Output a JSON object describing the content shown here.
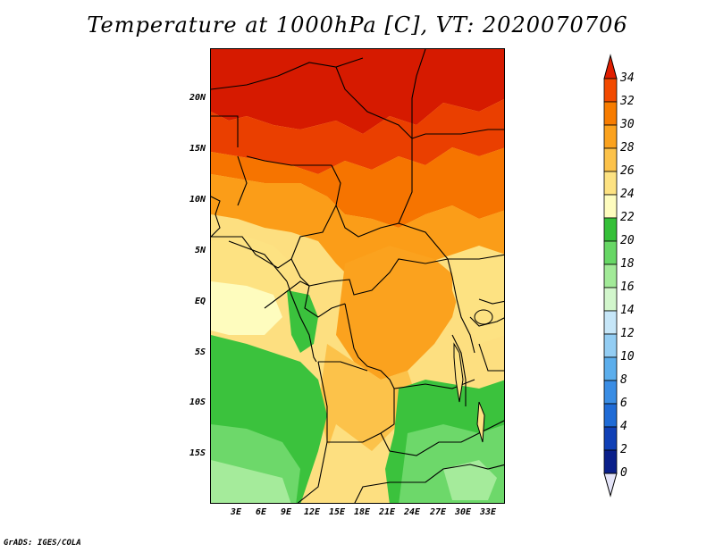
{
  "title": "Temperature at 1000hPa [C], VT: 2020070706",
  "footer": "GrADS: IGES/COLA",
  "lat_ticks": [
    "20N",
    "15N",
    "10N",
    "5N",
    "EQ",
    "5S",
    "10S",
    "15S"
  ],
  "lon_ticks": [
    "3E",
    "6E",
    "9E",
    "12E",
    "15E",
    "18E",
    "21E",
    "24E",
    "27E",
    "30E",
    "33E"
  ],
  "colorbar": {
    "levels": [
      "34",
      "32",
      "30",
      "28",
      "26",
      "24",
      "22",
      "20",
      "18",
      "16",
      "14",
      "12",
      "10",
      "8",
      "6",
      "4",
      "2",
      "0"
    ],
    "colors": [
      "#e01e00",
      "#f24a00",
      "#f77c00",
      "#fba21e",
      "#fcc24a",
      "#fde282",
      "#fefcbe",
      "#35c038",
      "#67d765",
      "#a2ea98",
      "#d2f6cc",
      "#c6e6f8",
      "#93cdf3",
      "#5caeec",
      "#3a8de4",
      "#1f6bd6",
      "#1040b6",
      "#0a1f8a",
      "#e4e4f8"
    ]
  },
  "field_colors": {
    "t33": "#d61a00",
    "t31": "#ea3f00",
    "t29": "#f67400",
    "t27": "#fb9d18",
    "t25": "#fcc145",
    "t23": "#fddf80",
    "t21": "#3bc23d",
    "t19": "#6dd86a",
    "t17": "#a5eb9b"
  }
}
